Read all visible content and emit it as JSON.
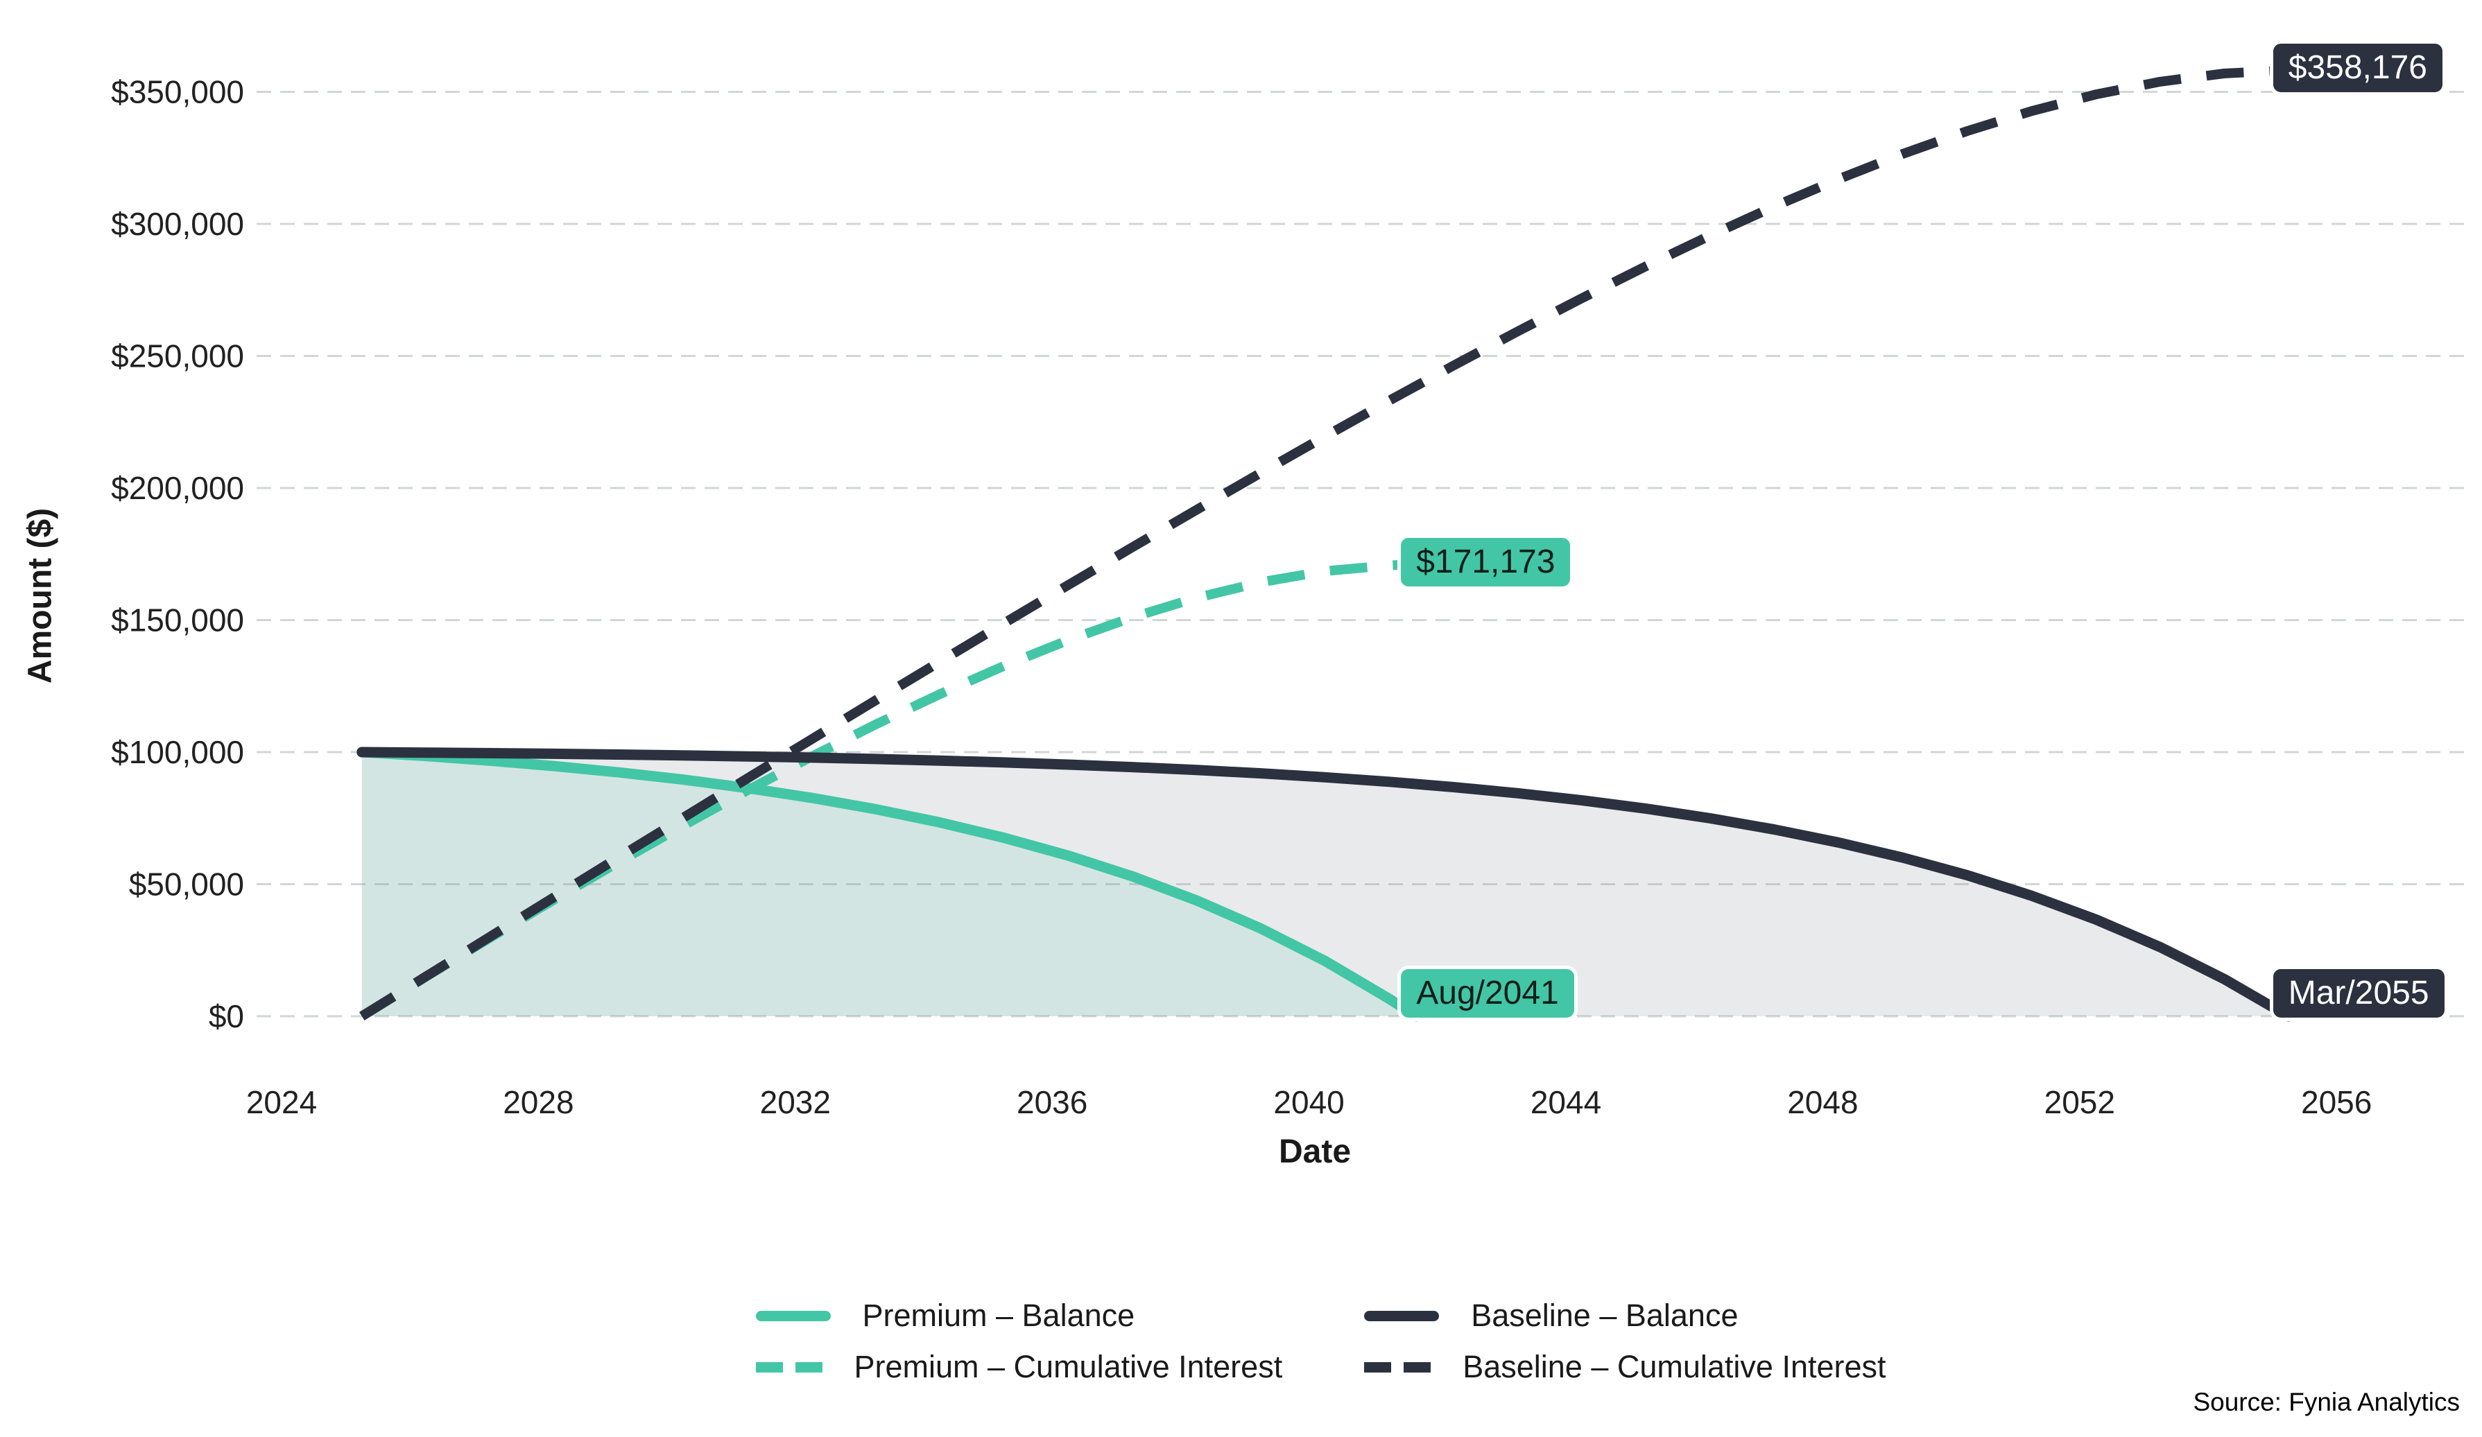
{
  "figure": {
    "x_axis_title": "Date",
    "y_axis_title": "Amount ($)",
    "source_note": "Source: Fynia Analytics",
    "colors": {
      "premium_teal": "#43c6a5",
      "baseline_navy": "#2c3140",
      "grid_line": "#8a9294",
      "area_gray": "#e9eaec",
      "area_teal_overlay": "rgba(67,198,165,0.13)",
      "badge_border": "#ffffff",
      "badge_text_on_teal": "#0f1e1a",
      "badge_text_on_navy": "#ffffff",
      "tick_text": "#212121"
    },
    "legend": {
      "items": [
        {
          "id": "premium-balance",
          "label": "Premium – Balance",
          "color": "#43c6a5",
          "dash": false
        },
        {
          "id": "premium-cum-interest",
          "label": "Premium – Cumulative Interest",
          "color": "#43c6a5",
          "dash": true
        },
        {
          "id": "baseline-balance",
          "label": "Baseline – Balance",
          "color": "#2c3140",
          "dash": false
        },
        {
          "id": "baseline-cum-interest",
          "label": "Baseline – Cumulative Interest",
          "color": "#2c3140",
          "dash": true
        }
      ]
    }
  },
  "chart_data": {
    "type": "line",
    "title": "",
    "xlabel": "Date",
    "ylabel": "Amount ($)",
    "xlim": [
      2023.6,
      2057.9
    ],
    "ylim": [
      0,
      374000
    ],
    "grid": "horizontal-dashed",
    "legend_position": "bottom-center",
    "x_ticks": [
      "2024",
      "2028",
      "2032",
      "2036",
      "2040",
      "2044",
      "2048",
      "2052",
      "2056"
    ],
    "y_ticks": [
      {
        "value": 0,
        "label": "$0"
      },
      {
        "value": 50000,
        "label": "$50,000"
      },
      {
        "value": 100000,
        "label": "$100,000"
      },
      {
        "value": 150000,
        "label": "$150,000"
      },
      {
        "value": 200000,
        "label": "$200,000"
      },
      {
        "value": 250000,
        "label": "$250,000"
      },
      {
        "value": 300000,
        "label": "$300,000"
      },
      {
        "value": 350000,
        "label": "$350,000"
      }
    ],
    "series": [
      {
        "name": "Premium – Balance",
        "style": "solid",
        "color": "#43c6a5",
        "filled_below": true,
        "points": [
          [
            2025.25,
            100000
          ],
          [
            2026.25,
            98493
          ],
          [
            2027.25,
            96743
          ],
          [
            2028.25,
            94708
          ],
          [
            2029.25,
            92345
          ],
          [
            2030.25,
            89599
          ],
          [
            2031.25,
            86408
          ],
          [
            2032.25,
            82700
          ],
          [
            2033.25,
            78392
          ],
          [
            2034.25,
            73386
          ],
          [
            2035.25,
            67569
          ],
          [
            2036.25,
            60810
          ],
          [
            2037.25,
            52958
          ],
          [
            2038.25,
            43833
          ],
          [
            2039.25,
            33232
          ],
          [
            2040.25,
            20913
          ],
          [
            2041.25,
            6600
          ],
          [
            2041.67,
            0
          ]
        ]
      },
      {
        "name": "Premium – Cumulative Interest",
        "style": "dashed",
        "color": "#43c6a5",
        "filled_below": false,
        "points": [
          [
            2025.25,
            0
          ],
          [
            2026.25,
            15001
          ],
          [
            2027.25,
            29757
          ],
          [
            2028.25,
            44230
          ],
          [
            2029.25,
            58374
          ],
          [
            2030.25,
            72135
          ],
          [
            2031.25,
            85451
          ],
          [
            2032.25,
            98251
          ],
          [
            2033.25,
            110450
          ],
          [
            2034.25,
            121951
          ],
          [
            2035.25,
            132641
          ],
          [
            2036.25,
            142390
          ],
          [
            2037.25,
            151044
          ],
          [
            2038.25,
            158427
          ],
          [
            2039.25,
            164333
          ],
          [
            2040.25,
            168521
          ],
          [
            2041.25,
            170716
          ],
          [
            2041.67,
            171173
          ]
        ]
      },
      {
        "name": "Baseline – Balance",
        "style": "solid",
        "color": "#2c3140",
        "filled_below": true,
        "points": [
          [
            2025.25,
            100000
          ],
          [
            2026.25,
            99819
          ],
          [
            2027.25,
            99608
          ],
          [
            2028.25,
            99363
          ],
          [
            2029.25,
            99078
          ],
          [
            2030.25,
            98748
          ],
          [
            2031.25,
            98363
          ],
          [
            2032.25,
            97917
          ],
          [
            2033.25,
            97398
          ],
          [
            2034.25,
            96795
          ],
          [
            2035.25,
            96095
          ],
          [
            2036.25,
            95281
          ],
          [
            2037.25,
            94336
          ],
          [
            2038.25,
            93237
          ],
          [
            2039.25,
            91961
          ],
          [
            2040.25,
            90477
          ],
          [
            2041.25,
            88754
          ],
          [
            2042.25,
            86751
          ],
          [
            2043.25,
            84424
          ],
          [
            2044.25,
            81720
          ],
          [
            2045.25,
            78579
          ],
          [
            2046.25,
            74929
          ],
          [
            2047.25,
            70687
          ],
          [
            2048.25,
            65759
          ],
          [
            2049.25,
            60033
          ],
          [
            2050.25,
            53380
          ],
          [
            2051.25,
            45650
          ],
          [
            2052.25,
            36668
          ],
          [
            2053.25,
            26231
          ],
          [
            2054.25,
            14103
          ],
          [
            2055.25,
            0
          ]
        ]
      },
      {
        "name": "Baseline – Cumulative Interest",
        "style": "dashed",
        "color": "#2c3140",
        "filled_below": false,
        "points": [
          [
            2025.25,
            0
          ],
          [
            2026.25,
            15090
          ],
          [
            2027.25,
            30150
          ],
          [
            2028.25,
            45176
          ],
          [
            2029.25,
            60163
          ],
          [
            2030.25,
            75104
          ],
          [
            2031.25,
            89991
          ],
          [
            2032.25,
            104815
          ],
          [
            2033.25,
            119568
          ],
          [
            2034.25,
            134236
          ],
          [
            2035.25,
            148807
          ],
          [
            2036.25,
            163264
          ],
          [
            2037.25,
            177590
          ],
          [
            2038.25,
            191763
          ],
          [
            2039.25,
            205757
          ],
          [
            2040.25,
            219545
          ],
          [
            2041.25,
            233093
          ],
          [
            2042.25,
            246361
          ],
          [
            2043.25,
            259306
          ],
          [
            2044.25,
            271873
          ],
          [
            2045.25,
            284003
          ],
          [
            2046.25,
            295624
          ],
          [
            2047.25,
            306654
          ],
          [
            2048.25,
            316997
          ],
          [
            2049.25,
            326542
          ],
          [
            2050.25,
            335160
          ],
          [
            2051.25,
            342701
          ],
          [
            2052.25,
            348990
          ],
          [
            2053.25,
            353824
          ],
          [
            2054.25,
            356968
          ],
          [
            2055.25,
            358176
          ]
        ]
      }
    ],
    "annotations": [
      {
        "id": "premium-total-interest",
        "label": "$171,173",
        "theme": "teal",
        "x": 2041.67,
        "y": 171173
      },
      {
        "id": "baseline-total-interest",
        "label": "$358,176",
        "theme": "navy",
        "x": 2055.25,
        "y": 358176
      },
      {
        "id": "premium-payoff-date",
        "label": "Aug/2041",
        "theme": "teal",
        "x": 2041.67,
        "y": 0
      },
      {
        "id": "baseline-payoff-date",
        "label": "Mar/2055",
        "theme": "navy",
        "x": 2055.25,
        "y": 0
      }
    ]
  }
}
